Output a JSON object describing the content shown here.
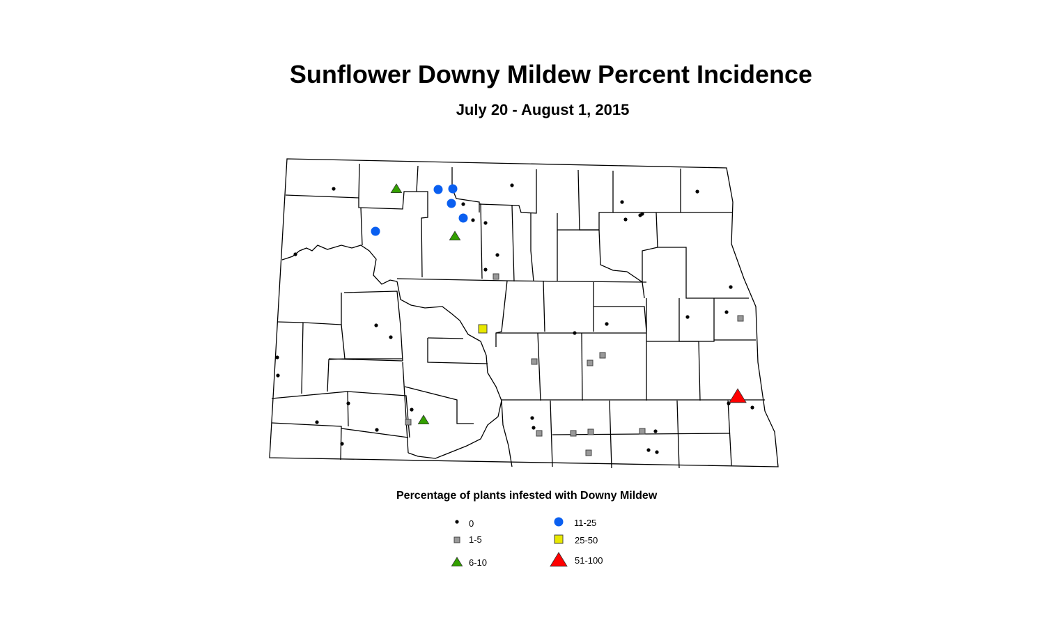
{
  "title": "Sunflower Downy Mildew Percent Incidence",
  "subtitle": "July 20 - August 1, 2015",
  "legend": {
    "title": "Percentage of plants infested with Downy Mildew",
    "items": [
      {
        "label": "0",
        "symbol": "small-dot",
        "color": "#000000"
      },
      {
        "label": "1-5",
        "symbol": "square",
        "color": "#999999"
      },
      {
        "label": "6-10",
        "symbol": "triangle",
        "color": "#33a000"
      },
      {
        "label": "11-25",
        "symbol": "circle",
        "color": "#0a5ff0"
      },
      {
        "label": "25-50",
        "symbol": "square",
        "color": "#e8e800"
      },
      {
        "label": "51-100",
        "symbol": "triangle",
        "color": "#ff0000"
      }
    ]
  },
  "observation_counts": {
    "0": 34,
    "1-5": 11,
    "6-10": 3,
    "11-25": 5,
    "25-50": 1,
    "51-100": 1
  }
}
